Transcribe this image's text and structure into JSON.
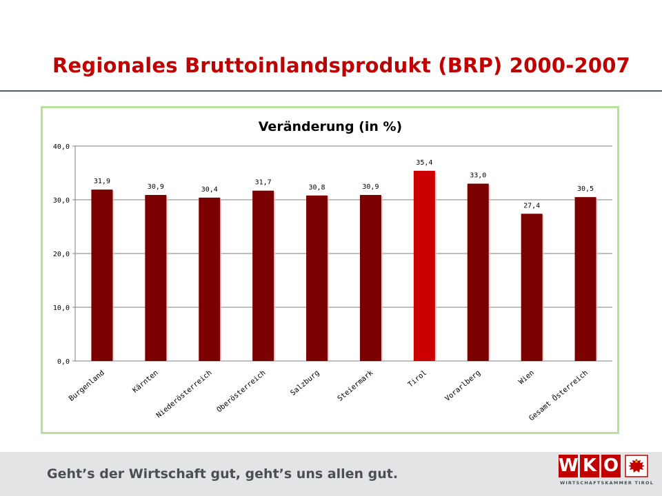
{
  "slide": {
    "title": "Regionales Bruttoinlandsprodukt (BRP) 2000-2007"
  },
  "chart_data": {
    "type": "bar",
    "title": "Veränderung (in %)",
    "categories": [
      "Burgenland",
      "Kärnten",
      "Niederösterreich",
      "Oberösterreich",
      "Salzburg",
      "Steiermark",
      "Tirol",
      "Vorarlberg",
      "Wien",
      "Gesamt Österreich"
    ],
    "values": [
      31.9,
      30.9,
      30.4,
      31.7,
      30.8,
      30.9,
      35.4,
      33.0,
      27.4,
      30.5
    ],
    "value_labels": [
      "31,9",
      "30,9",
      "30,4",
      "31,7",
      "30,8",
      "30,9",
      "35,4",
      "33,0",
      "27,4",
      "30,5"
    ],
    "highlight_category": "Tirol",
    "ylim": [
      0,
      40
    ],
    "yticks": [
      "0,0",
      "10,0",
      "20,0",
      "30,0",
      "40,0"
    ],
    "grid": true,
    "xlabel": "",
    "ylabel": "",
    "colors": {
      "bar": "#7b0000",
      "highlight": "#cc0000",
      "grid": "#7f7f7f",
      "frame": "#b8e29a"
    }
  },
  "footer": {
    "slogan": "Geht’s der Wirtschaft gut, geht’s uns allen gut.",
    "logo_letters": [
      "W",
      "K",
      "O"
    ],
    "logo_subtitle": "WIRTSCHAFTSKAMMER TIROL",
    "logo_crest_icon": "tyrol-eagle-crest-icon"
  }
}
